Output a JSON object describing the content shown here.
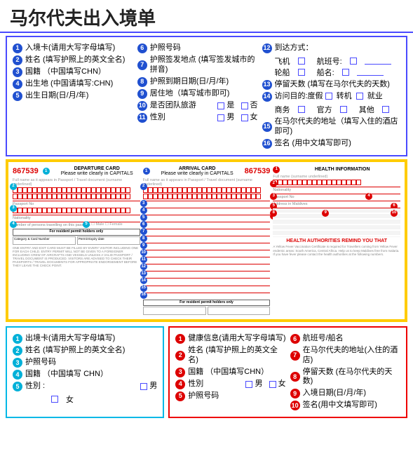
{
  "title": "马尔代夫出入境单",
  "colors": {
    "blue": "#4a4aff",
    "red": "#e00",
    "cyan": "#00b8e6",
    "yellow": "#ffcc00",
    "circ_blue": "#2050d0",
    "circ_red": "#d00",
    "circ_cyan": "#00b0d8"
  },
  "top_panel": {
    "border_color": "#4a4aff",
    "col1": [
      {
        "n": "1",
        "text": "入境卡(请用大写字母填写)"
      },
      {
        "n": "2",
        "text": "姓名 (填写护照上的英文全名)"
      },
      {
        "n": "3",
        "text": "国籍  （中国填写CHN）"
      },
      {
        "n": "4",
        "text": "出生地 (中国请填写:CHN)"
      },
      {
        "n": "5",
        "text": "出生日期(日/月/年)"
      }
    ],
    "col2": [
      {
        "n": "6",
        "text": "护照号码"
      },
      {
        "n": "7",
        "text": "护照签发地点 (填写签发城市的拼音)"
      },
      {
        "n": "8",
        "text": "护照到期日期(日/月/年)"
      },
      {
        "n": "9",
        "text": "居住地（填写城市即可)"
      },
      {
        "n": "10",
        "text": "是否团队旅游",
        "opts": [
          "是",
          "否"
        ]
      },
      {
        "n": "11",
        "text": "性別",
        "opts": [
          "男",
          "女"
        ]
      }
    ],
    "col3": [
      {
        "n": "12",
        "text": "到达方式：",
        "lines": [
          [
            "飞机",
            "航班号:"
          ],
          [
            "轮船",
            "船名:"
          ]
        ]
      },
      {
        "n": "13",
        "text": "停留天数 (填写在马尔代夫的天数)"
      },
      {
        "n": "14",
        "text": "访问目的:度假",
        "opts2": [
          "转机",
          "就业"
        ],
        "line2_opts": [
          "商务",
          "官方",
          "其他"
        ]
      },
      {
        "n": "15",
        "text": "在马尔代夫的地址（填写入住的酒店即可)"
      },
      {
        "n": "16",
        "text": "签名 (用中文填写即可)"
      }
    ]
  },
  "cards": {
    "border_color": "#ffcc00",
    "serial": "867539",
    "departure": {
      "title": "DEPARTURE CARD",
      "sub": "Please write clearly in CAPITALS",
      "res_header": "For resident permit holders only",
      "res_cols": [
        "Category & Card Number",
        "Permit Expiry date"
      ],
      "fine": "ONE ENTRY AND EXIT CARD MUST BE FILLED BY EVERY VISITOR INCLUDING ONE FOR EACH CHILD. ENTRY PERMIT WILL NOT BE GIVEN TO A FOREIGNER INCLUDING CREW OF AIRCRAFTS AND VESSELS UNLESS A VALID PASSPORT / TRAVEL DOCUMENT IS PRODUCED. VISITORS ARE ADVISED TO CHECK THEIR PASSPORTS / TRAVEL DOCUMENTS FOR APPROPRIATE ENDORSEMENT BEFORE THEY LEAVE THE CHECK POINT."
    },
    "arrival": {
      "title": "ARRIVAL CARD",
      "sub": "Please write clearly in CAPITALS",
      "res_header": "For resident permit holders only"
    },
    "health": {
      "title": "HEALTH INFORMATION",
      "big": "HEALTH AUTHORITIES REMIND YOU THAT",
      "fine": "A Yellow Fever Vaccination Certificate is required for Travellers coming from Yellow Fever endemic areas: South America, Central Africa. Help us to keep Maldives free from malaria. If you have fever please contact the health authorities at the following numbers."
    }
  },
  "bottom_left": {
    "border_color": "#00b8e6",
    "items": [
      {
        "n": "1",
        "text": "出境卡(请用大写字母填写)"
      },
      {
        "n": "2",
        "text": "姓名 (填写护照上的英文全名)"
      },
      {
        "n": "3",
        "text": "护照号码"
      },
      {
        "n": "4",
        "text": "国籍 （中国填写 CHN）"
      },
      {
        "n": "5",
        "text": "性別 :",
        "opts": [
          "男",
          "女"
        ]
      }
    ]
  },
  "bottom_right": {
    "border_color": "#e00",
    "col1": [
      {
        "n": "1",
        "text": "健康信息(请用大写字母填写)"
      },
      {
        "n": "2",
        "text": "姓名 (填写护照上的英文全名)"
      },
      {
        "n": "3",
        "text": "国籍  （中国填写CHN）"
      },
      {
        "n": "4",
        "text": "性別",
        "opts": [
          "男",
          "女"
        ]
      },
      {
        "n": "5",
        "text": "护照号码"
      }
    ],
    "col2": [
      {
        "n": "6",
        "text": "航班号/船名"
      },
      {
        "n": "7",
        "text": "在马尔代夫的地址(入住的酒店)"
      },
      {
        "n": "8",
        "text": "停留天数 (在马尔代夫的天数)"
      },
      {
        "n": "9",
        "text": "入境日期(日/月/年)"
      },
      {
        "n": "10",
        "text": "签名(用中文填写即可)"
      }
    ]
  }
}
